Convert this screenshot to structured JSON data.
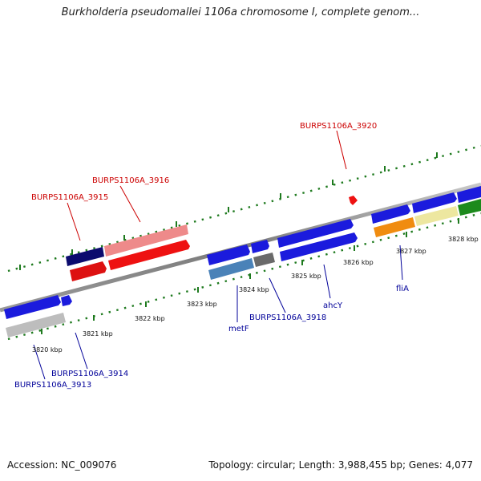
{
  "title": "Burkholderia pseudomallei 1106a chromosome I, complete genom...",
  "footer": {
    "accession": "Accession: NC_009076",
    "summary": "Topology: circular; Length: 3,988,455 bp; Genes: 4,077"
  },
  "colors": {
    "label_red": "#cc0000",
    "label_blue": "#000099",
    "tick_green": "#1e7a1e",
    "axis_gray": "#8a8a8a"
  },
  "scale_labels": [
    "3820 kbp",
    "3821 kbp",
    "3822 kbp",
    "3823 kbp",
    "3824 kbp",
    "3825 kbp",
    "3826 kbp",
    "3827 kbp",
    "3828 kbp"
  ],
  "gene_labels_top": [
    "BURPS1106A_3915",
    "BURPS1106A_3916",
    "BURPS1106A_3920"
  ],
  "gene_labels_bottom": [
    "BURPS1106A_3913",
    "BURPS1106A_3914",
    "metF",
    "BURPS1106A_3918",
    "ahcY",
    "fliA"
  ]
}
